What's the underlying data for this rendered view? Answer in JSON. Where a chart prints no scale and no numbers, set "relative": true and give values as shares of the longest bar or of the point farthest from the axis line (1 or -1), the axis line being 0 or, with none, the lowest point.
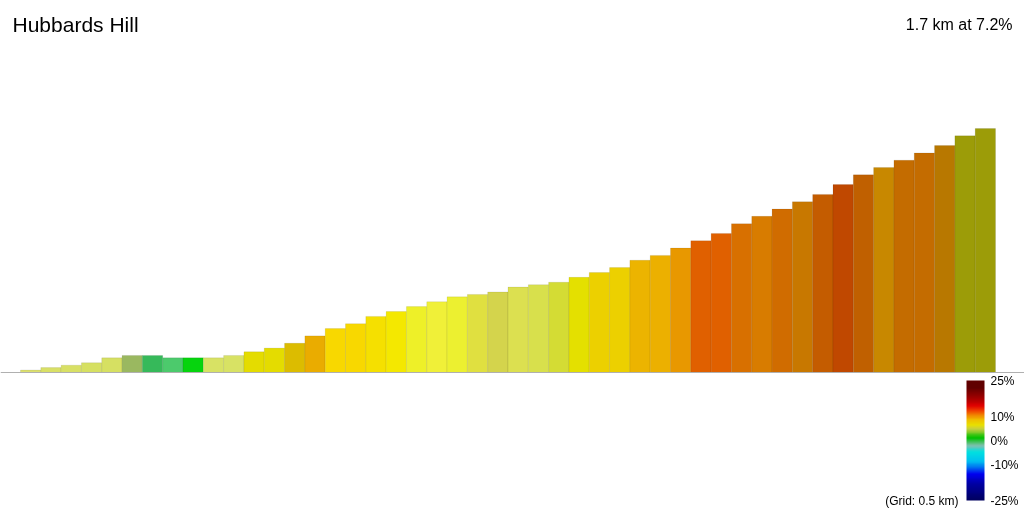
{
  "chart_data": {
    "type": "bar",
    "title": "Hubbards Hill",
    "subtitle": "1.7 km at 7.2%",
    "annotations": [
      "(Grid: 0.5 km)"
    ],
    "relative": true,
    "categories": [
      null,
      null,
      null,
      null,
      null,
      null,
      null,
      null,
      null,
      null,
      null,
      null,
      null,
      null,
      null,
      null,
      null,
      null,
      null,
      null,
      null,
      null,
      null,
      null,
      null,
      null,
      null,
      null,
      null,
      null,
      null,
      null,
      null,
      null,
      null,
      null,
      null,
      null,
      null,
      null,
      null,
      null,
      null,
      null,
      null,
      null,
      null,
      null
    ],
    "values": [
      0.01,
      0.02,
      0.03,
      0.04,
      0.06,
      0.07,
      0.07,
      0.06,
      0.06,
      0.06,
      0.07,
      0.085,
      0.1,
      0.12,
      0.15,
      0.18,
      0.2,
      0.23,
      0.25,
      0.27,
      0.29,
      0.31,
      0.32,
      0.33,
      0.35,
      0.36,
      0.37,
      0.39,
      0.41,
      0.43,
      0.46,
      0.48,
      0.51,
      0.54,
      0.57,
      0.61,
      0.64,
      0.67,
      0.7,
      0.73,
      0.77,
      0.81,
      0.84,
      0.87,
      0.9,
      0.93,
      0.97,
      1
    ],
    "colors": [
      "#dce070",
      "#d9e066",
      "#d8e065",
      "#d6e062",
      "#d6e062",
      "#9ab860",
      "#36b95a",
      "#4cca6c",
      "#06d40e",
      "#d8e264",
      "#d8e264",
      "#e4dc00",
      "#e4dc00",
      "#dcbc00",
      "#eaac00",
      "#f8d800",
      "#f8d800",
      "#f5e000",
      "#f4e800",
      "#eef028",
      "#f0f038",
      "#ecf030",
      "#e0e040",
      "#d4d44c",
      "#dce050",
      "#d8e04c",
      "#d4dc34",
      "#e4e000",
      "#ecd000",
      "#ecd000",
      "#ecb400",
      "#ecb000",
      "#e89800",
      "#e06000",
      "#e06000",
      "#d87000",
      "#d87c00",
      "#d06c00",
      "#c87800",
      "#c45c00",
      "#c04800",
      "#c06000",
      "#c88800",
      "#c46c00",
      "#c46c00",
      "#b87800",
      "#9c9c08",
      "#9c9c08"
    ],
    "clim": [
      -25,
      25
    ],
    "cticks": [
      {
        "value": 25,
        "label": "25%"
      },
      {
        "value": 10,
        "label": "10%"
      },
      {
        "value": 0,
        "label": "0%"
      },
      {
        "value": -10,
        "label": "-10%"
      },
      {
        "value": -25,
        "label": "-25%"
      }
    ]
  }
}
